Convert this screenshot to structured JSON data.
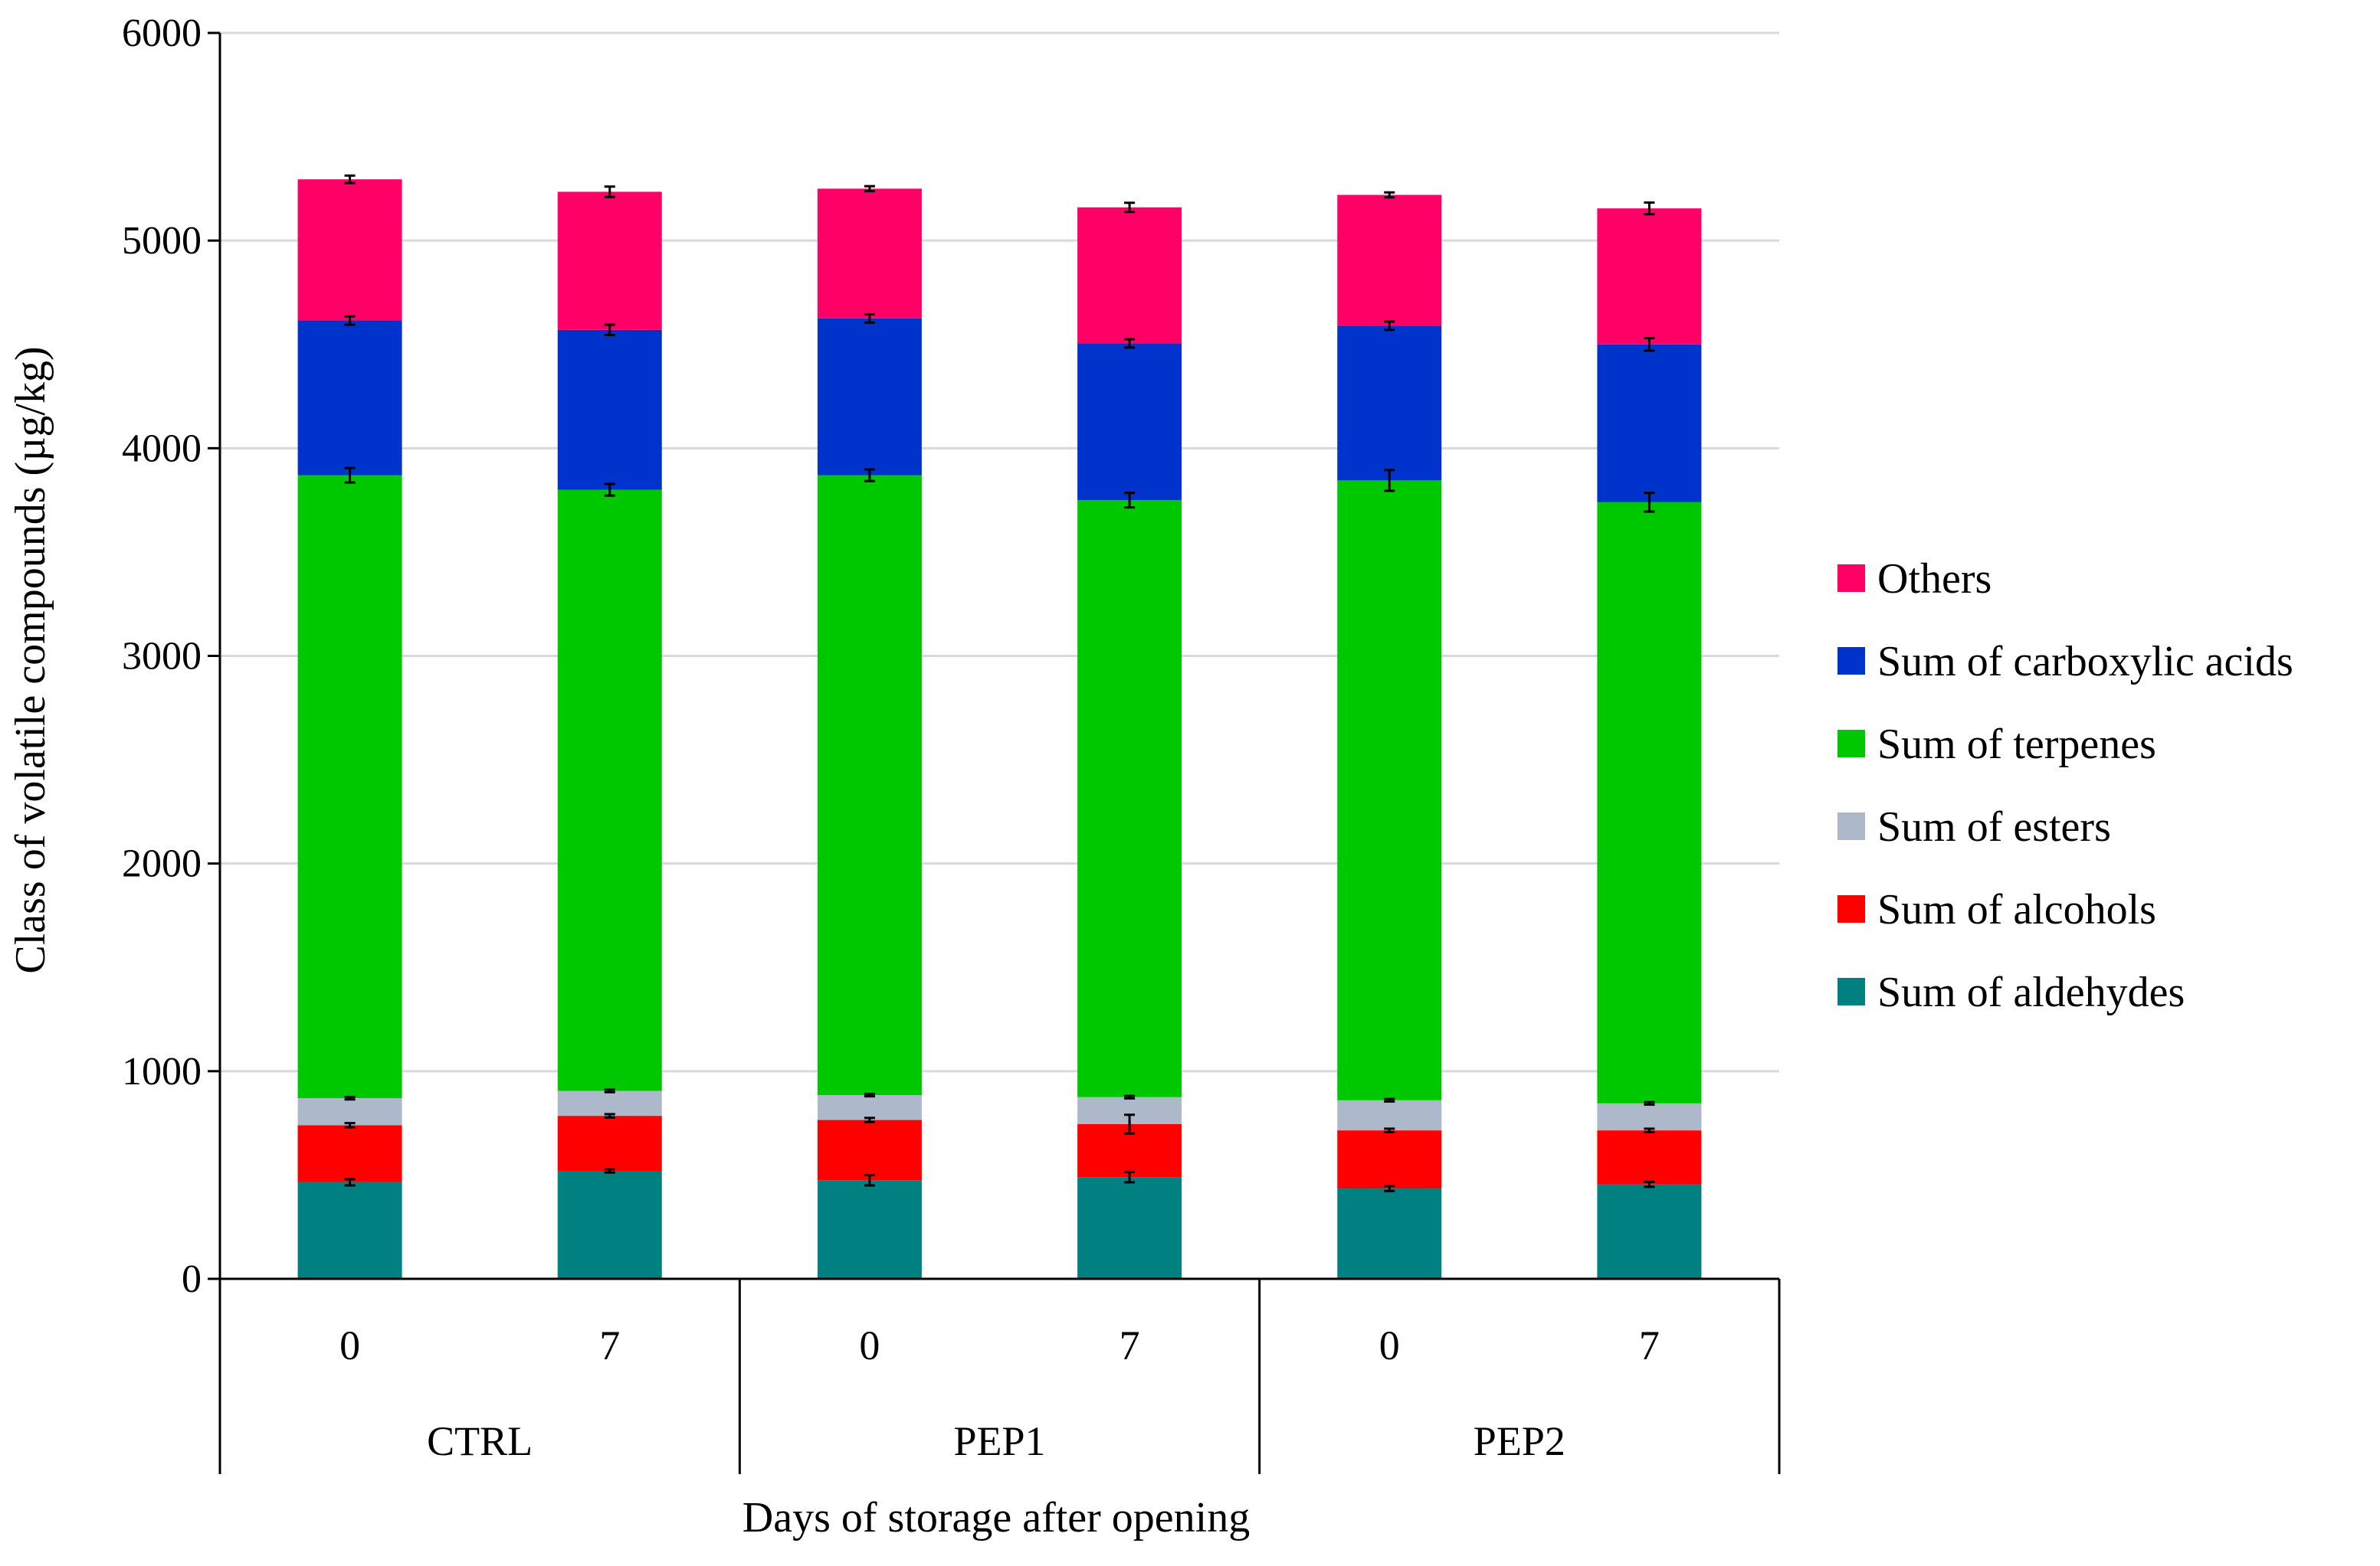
{
  "chart_data": {
    "type": "bar",
    "stacked": true,
    "title": "",
    "ylabel": "Class of volatile compounds (µg/kg)",
    "xlabel": "Days of storage after opening",
    "ylim": [
      0,
      6000
    ],
    "yticks": [
      0,
      1000,
      2000,
      3000,
      4000,
      5000,
      6000
    ],
    "grid": true,
    "legend_position": "right",
    "groups": [
      {
        "label": "CTRL",
        "days": [
          "0",
          "7"
        ]
      },
      {
        "label": "PEP1",
        "days": [
          "0",
          "7"
        ]
      },
      {
        "label": "PEP2",
        "days": [
          "0",
          "7"
        ]
      }
    ],
    "categories": [
      "CTRL 0",
      "CTRL 7",
      "PEP1 0",
      "PEP1 7",
      "PEP2 0",
      "PEP2 7"
    ],
    "series": [
      {
        "name": "Sum of aldehydes",
        "color": "#008080",
        "values": [
          465,
          520,
          475,
          490,
          435,
          455
        ],
        "errors": [
          15,
          8,
          25,
          25,
          12,
          12
        ]
      },
      {
        "name": "Sum of alcohols",
        "color": "#ff0000",
        "values": [
          275,
          265,
          290,
          255,
          280,
          260
        ],
        "errors": [
          10,
          8,
          10,
          45,
          8,
          8
        ]
      },
      {
        "name": "Sum of esters",
        "color": "#adb9ca",
        "values": [
          130,
          120,
          120,
          130,
          145,
          130
        ],
        "errors": [
          6,
          6,
          6,
          6,
          6,
          6
        ]
      },
      {
        "name": "Sum of terpenes",
        "color": "#00c800",
        "values": [
          3000,
          2895,
          2985,
          2875,
          2985,
          2895
        ],
        "errors": [
          35,
          28,
          28,
          35,
          50,
          45
        ]
      },
      {
        "name": "Sum of carboxylic acids",
        "color": "#0033cc",
        "values": [
          745,
          770,
          755,
          755,
          745,
          760
        ],
        "errors": [
          20,
          25,
          20,
          20,
          20,
          30
        ]
      },
      {
        "name": "Others",
        "color": "#ff0066",
        "values": [
          680,
          665,
          625,
          655,
          630,
          655
        ],
        "errors": [
          18,
          25,
          12,
          22,
          12,
          28
        ]
      }
    ]
  }
}
